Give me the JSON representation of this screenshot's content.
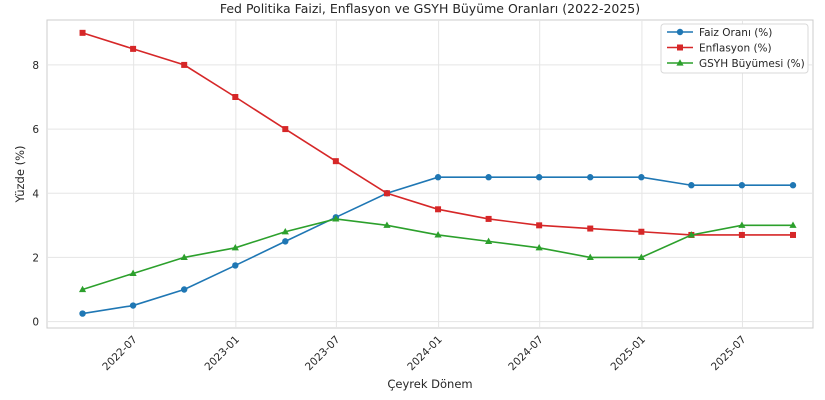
{
  "chart_data": {
    "type": "line",
    "title": "Fed Politika Faizi, Enflasyon ve GSYH Büyüme Oranları (2022-2025)",
    "xlabel": "Çeyrek Dönem",
    "ylabel": "Yüzde (%)",
    "x": [
      "2022-03-31",
      "2022-06-30",
      "2022-09-30",
      "2022-12-31",
      "2023-03-31",
      "2023-06-30",
      "2023-09-30",
      "2023-12-31",
      "2024-03-31",
      "2024-06-30",
      "2024-09-30",
      "2024-12-31",
      "2025-03-31",
      "2025-06-30",
      "2025-09-30"
    ],
    "x_ticks": [
      "2022-07",
      "2023-01",
      "2023-07",
      "2024-01",
      "2024-07",
      "2025-01",
      "2025-07"
    ],
    "xlim": [
      "2022-01-26",
      "2025-11-05"
    ],
    "y_ticks": [
      0,
      2,
      4,
      6,
      8
    ],
    "ylim": [
      -0.2,
      9.4
    ],
    "grid": true,
    "legend_position": "top-right",
    "series": [
      {
        "name": "Faiz Oranı (%)",
        "color": "#1f77b4",
        "marker": "circle",
        "values": [
          0.25,
          0.5,
          1.0,
          1.75,
          2.5,
          3.25,
          4.0,
          4.5,
          4.5,
          4.5,
          4.5,
          4.5,
          4.25,
          4.25,
          4.25
        ]
      },
      {
        "name": "Enflasyon (%)",
        "color": "#d62728",
        "marker": "square",
        "values": [
          9.0,
          8.5,
          8.0,
          7.0,
          6.0,
          5.0,
          4.0,
          3.5,
          3.2,
          3.0,
          2.9,
          2.8,
          2.7,
          2.7,
          2.7
        ]
      },
      {
        "name": "GSYH Büyümesi (%)",
        "color": "#2ca02c",
        "marker": "triangle",
        "values": [
          1.0,
          1.5,
          2.0,
          2.3,
          2.8,
          3.2,
          3.0,
          2.7,
          2.5,
          2.3,
          2.0,
          2.0,
          2.7,
          3.0,
          3.0
        ]
      }
    ]
  }
}
